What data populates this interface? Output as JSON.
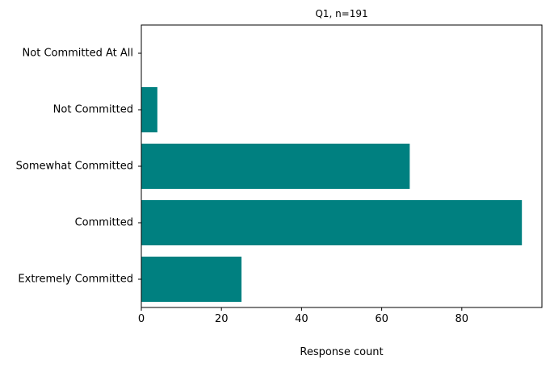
{
  "chart_data": {
    "type": "bar",
    "orientation": "horizontal",
    "title": "Q1, n=191",
    "xlabel": "Response count",
    "ylabel": "",
    "categories": [
      "Not Committed At All",
      "Not Committed",
      "Somewhat Committed",
      "Committed",
      "Extremely Committed"
    ],
    "values": [
      0,
      4,
      67,
      95,
      25
    ],
    "xlim": [
      0,
      100
    ],
    "xticks": [
      0,
      20,
      40,
      60,
      80
    ],
    "grid": false,
    "legend": "none",
    "bar_color": "#008080"
  }
}
